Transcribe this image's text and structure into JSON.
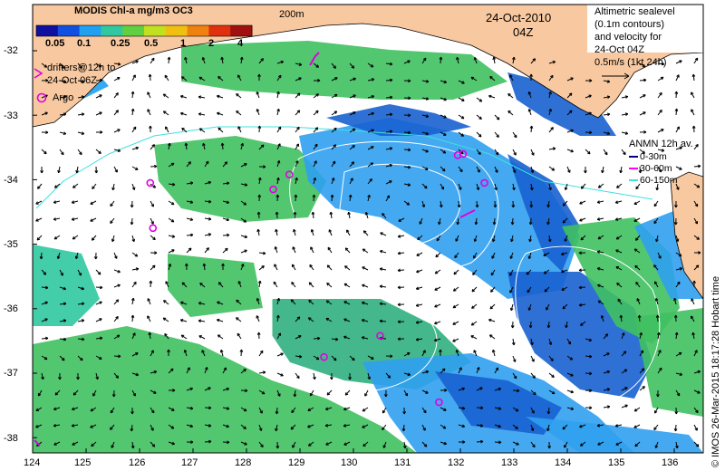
{
  "title": "MODIS Chl-a mg/m3 OC3",
  "colorbar": {
    "labels": [
      "0.05",
      "0.1",
      "0.25",
      "0.5",
      "1",
      "2",
      "4"
    ],
    "colors": [
      "#1010a0",
      "#1050e0",
      "#20a0f0",
      "#30c8a0",
      "#60d040",
      "#c0e020",
      "#f0c010",
      "#f08010",
      "#e03010",
      "#a01010"
    ]
  },
  "depth_label": "200m",
  "date": "24-Oct-2010",
  "time": "04Z",
  "altimetry_note": [
    "Altimetric sealevel",
    "(0.1m contours)",
    "and velocity for",
    "24-Oct 04Z",
    "0.5m/s (1kt 24h)"
  ],
  "drifter_note": [
    "drifters@12h to",
    "24-Oct 06Z"
  ],
  "argo_label": "Argo",
  "anmn": {
    "title": "ANMN 12h av.",
    "items": [
      {
        "label": "0-30m",
        "color": "#000080"
      },
      {
        "label": "30-60m",
        "color": "#ff00ff"
      },
      {
        "label": "60-150m",
        "color": "#40e0e0"
      }
    ]
  },
  "credit": "© IMOS 26-Mar-2015 18:17:28 Hobart time",
  "axes": {
    "lon_ticks": [
      "124",
      "125",
      "126",
      "127",
      "128",
      "129",
      "130",
      "131",
      "132",
      "133",
      "134",
      "135",
      "136"
    ],
    "lat_ticks": [
      "-32",
      "-33",
      "-34",
      "-35",
      "-36",
      "-37",
      "-38"
    ]
  },
  "colors": {
    "land": "#f8c9a0",
    "argo": "#e000e0",
    "arrow": "#000000"
  },
  "argo_floats": [
    {
      "lon": 126.2,
      "lat": -34.05
    },
    {
      "lon": 126.25,
      "lat": -34.75
    },
    {
      "lon": 128.5,
      "lat": -34.15
    },
    {
      "lon": 128.8,
      "lat": -33.92
    },
    {
      "lon": 131.95,
      "lat": -33.62
    },
    {
      "lon": 132.05,
      "lat": -33.6
    },
    {
      "lon": 132.45,
      "lat": -34.05
    },
    {
      "lon": 130.5,
      "lat": -36.42
    },
    {
      "lon": 129.45,
      "lat": -36.75
    },
    {
      "lon": 131.6,
      "lat": -37.45
    }
  ]
}
